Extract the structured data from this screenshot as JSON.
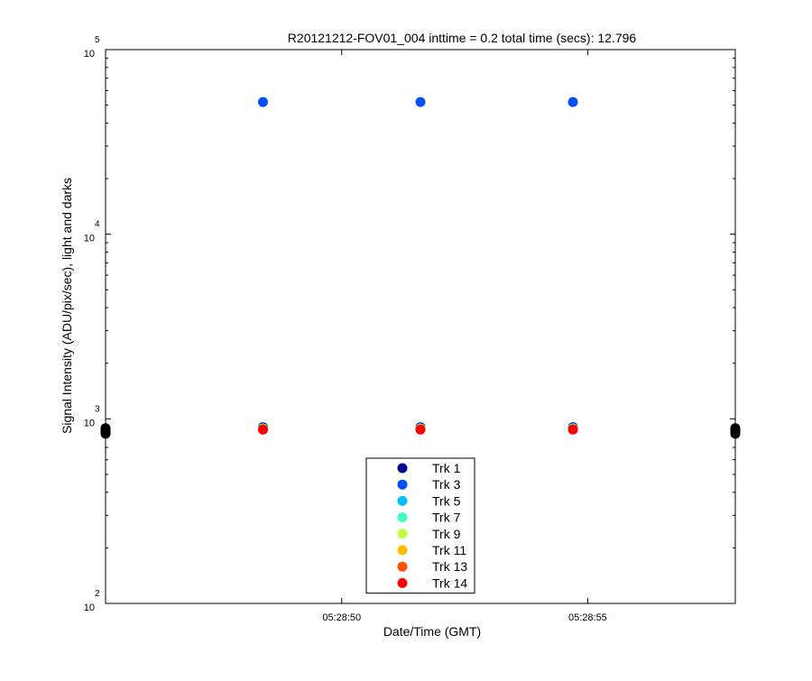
{
  "chart_data": {
    "type": "scatter",
    "title": "R20121212-FOV01_004 inttime = 0.2 total time (secs): 12.796",
    "xlabel": "Date/Time (GMT)",
    "ylabel": "Signal Intensity (ADU/pix/sec), light and darks",
    "yscale": "log",
    "ylim": [
      100,
      100000
    ],
    "xlim": [
      "05:28:45.2",
      "05:28:58.0"
    ],
    "x_ticks": [
      {
        "label": "05:28:50",
        "t": "05:28:50"
      },
      {
        "label": "05:28:55",
        "t": "05:28:55"
      }
    ],
    "y_ticks": [
      {
        "base": "10",
        "exp": "2",
        "value": 100
      },
      {
        "base": "10",
        "exp": "3",
        "value": 1000
      },
      {
        "base": "10",
        "exp": "4",
        "value": 10000
      },
      {
        "base": "10",
        "exp": "5",
        "value": 100000
      }
    ],
    "legend_position": "bottom-center",
    "grid": false,
    "series": [
      {
        "name": "Trk 1",
        "color": "#00008f",
        "points": [
          [
            "05:28:48.4",
            900
          ],
          [
            "05:28:51.6",
            900
          ],
          [
            "05:28:54.7",
            900
          ]
        ]
      },
      {
        "name": "Trk 3",
        "color": "#0050ff",
        "points": [
          [
            "05:28:48.4",
            52000
          ],
          [
            "05:28:51.6",
            52000
          ],
          [
            "05:28:54.7",
            52000
          ]
        ]
      },
      {
        "name": "Trk 5",
        "color": "#00bfff",
        "points": [
          [
            "05:28:48.4",
            890
          ],
          [
            "05:28:51.6",
            890
          ],
          [
            "05:28:54.7",
            890
          ]
        ]
      },
      {
        "name": "Trk 7",
        "color": "#40ffbf",
        "points": [
          [
            "05:28:48.4",
            885
          ],
          [
            "05:28:51.6",
            885
          ],
          [
            "05:28:54.7",
            885
          ]
        ]
      },
      {
        "name": "Trk 9",
        "color": "#bfff40",
        "points": [
          [
            "05:28:48.4",
            880
          ],
          [
            "05:28:51.6",
            880
          ],
          [
            "05:28:54.7",
            880
          ]
        ]
      },
      {
        "name": "Trk 11",
        "color": "#ffbf00",
        "points": [
          [
            "05:28:48.4",
            878
          ],
          [
            "05:28:51.6",
            878
          ],
          [
            "05:28:54.7",
            878
          ]
        ]
      },
      {
        "name": "Trk 13",
        "color": "#ff5000",
        "points": [
          [
            "05:28:48.4",
            876
          ],
          [
            "05:28:51.6",
            876
          ],
          [
            "05:28:54.7",
            876
          ]
        ]
      },
      {
        "name": "Trk 14",
        "color": "#ff0000",
        "points": [
          [
            "05:28:48.4",
            875
          ],
          [
            "05:28:51.6",
            875
          ],
          [
            "05:28:54.7",
            875
          ]
        ]
      }
    ],
    "dark_frames": {
      "color": "#000000",
      "points": [
        [
          "05:28:45.2",
          830
        ],
        [
          "05:28:45.2",
          845
        ],
        [
          "05:28:45.2",
          860
        ],
        [
          "05:28:45.2",
          875
        ],
        [
          "05:28:45.2",
          890
        ],
        [
          "05:28:58.0",
          830
        ],
        [
          "05:28:58.0",
          845
        ],
        [
          "05:28:58.0",
          860
        ],
        [
          "05:28:58.0",
          875
        ],
        [
          "05:28:58.0",
          890
        ]
      ]
    }
  }
}
